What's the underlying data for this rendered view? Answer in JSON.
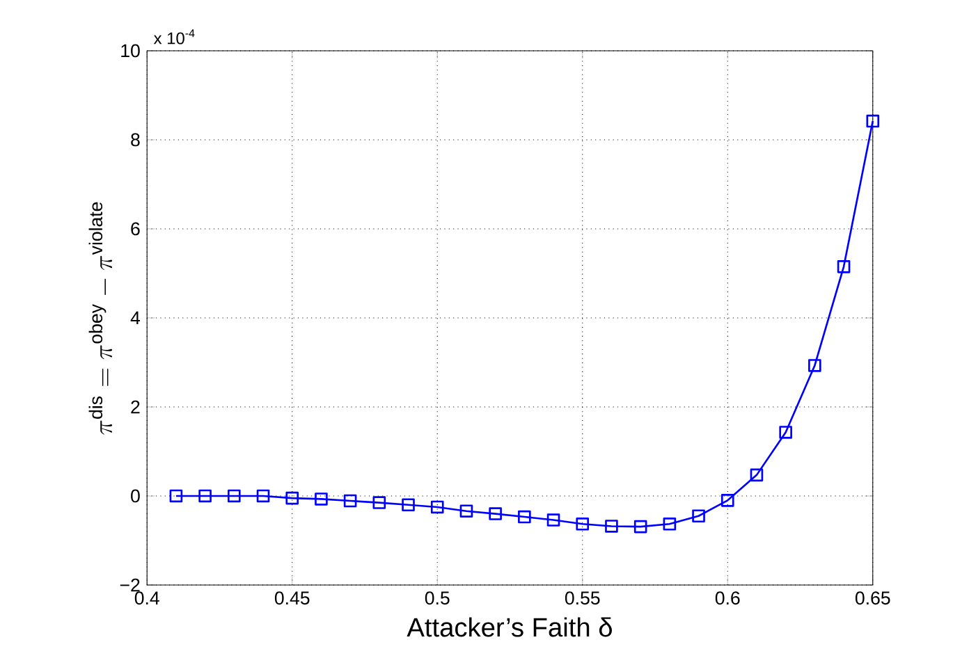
{
  "chart_data": {
    "type": "line",
    "xlabel": "Attacker’s Faith δ",
    "ylabel": "\\pi^{\\mathrm{dis}} = \\pi^{\\mathrm{obey}} - \\pi^{\\mathrm{violate}}",
    "annotations": [
      "x 10$^{-4}$"
    ],
    "x": [
      0.41,
      0.42,
      0.43,
      0.44,
      0.45,
      0.46,
      0.47,
      0.48,
      0.49,
      0.5,
      0.51,
      0.52,
      0.53,
      0.54,
      0.55,
      0.56,
      0.57,
      0.58,
      0.59,
      0.6,
      0.61,
      0.62,
      0.63,
      0.64,
      0.65
    ],
    "series": [
      {
        "color": "#0000ff",
        "values": [
          0.0,
          0.0,
          0.0,
          0.0,
          -0.05,
          -0.07,
          -0.11,
          -0.15,
          -0.2,
          -0.25,
          -0.34,
          -0.4,
          -0.47,
          -0.54,
          -0.63,
          -0.68,
          -0.69,
          -0.63,
          -0.45,
          -0.1,
          0.47,
          1.43,
          2.93,
          5.15,
          8.42
        ]
      }
    ],
    "xlim": [
      0.4,
      0.65
    ],
    "xticks": [
      0.4,
      0.45,
      0.5,
      0.55,
      0.6,
      0.65
    ],
    "ylim": [
      -2,
      10
    ],
    "yticks": [
      {
        "value": -2,
        "label": "−2"
      },
      0,
      2,
      4,
      6,
      8,
      10
    ],
    "grid": true,
    "marker": "square",
    "line_style": "solid"
  }
}
